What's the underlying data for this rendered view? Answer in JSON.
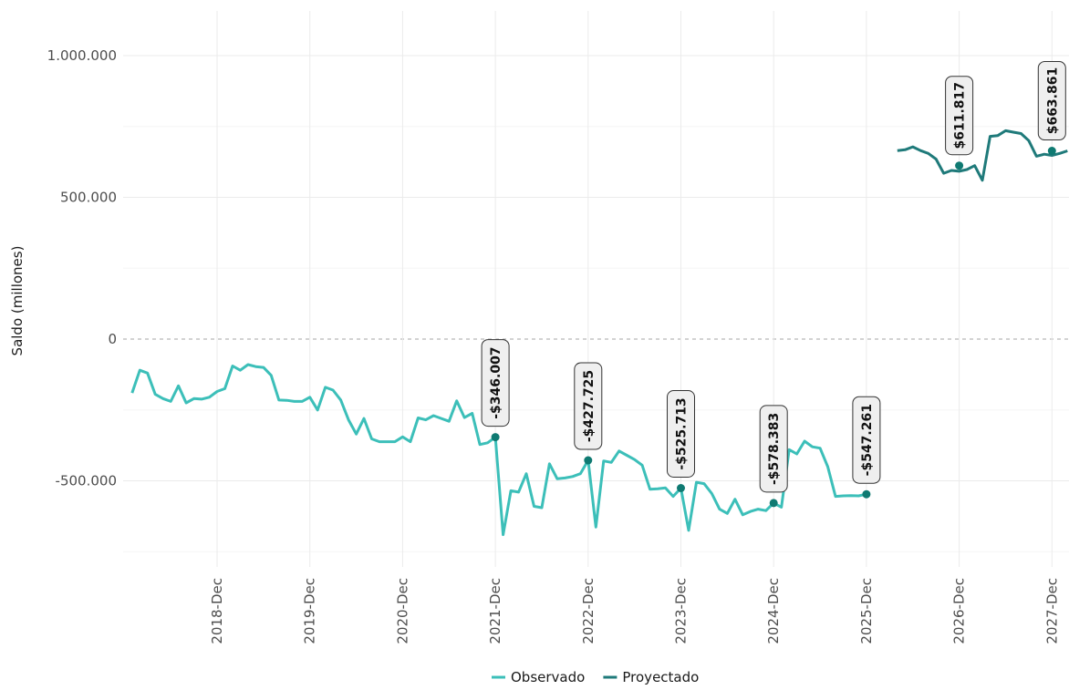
{
  "chart_data": {
    "type": "line",
    "ylabel": "Saldo (millones)",
    "ylim": [
      -820000,
      1160000
    ],
    "yticks": [
      {
        "value": 1000000,
        "label": "1.000.000"
      },
      {
        "value": 500000,
        "label": "500.000"
      },
      {
        "value": 0,
        "label": "0"
      },
      {
        "value": -500000,
        "label": "-500.000"
      }
    ],
    "xticks": [
      {
        "year": 2018,
        "label": "2018-Dec"
      },
      {
        "year": 2019,
        "label": "2019-Dec"
      },
      {
        "year": 2020,
        "label": "2020-Dec"
      },
      {
        "year": 2021,
        "label": "2021-Dec"
      },
      {
        "year": 2022,
        "label": "2022-Dec"
      },
      {
        "year": 2023,
        "label": "2023-Dec"
      },
      {
        "year": 2024,
        "label": "2024-Dec"
      },
      {
        "year": 2025,
        "label": "2025-Dec"
      },
      {
        "year": 2026,
        "label": "2026-Dec"
      },
      {
        "year": 2027,
        "label": "2027-Dec"
      }
    ],
    "legend": {
      "position": "bottom"
    },
    "colors": {
      "Observado": "#3cbfb9",
      "Proyectado": "#1f7a7a",
      "points": "#0f7a72"
    },
    "series": [
      {
        "name": "Observado",
        "start": "2018-01",
        "values": [
          -190000,
          -110000,
          -120000,
          -195000,
          -210000,
          -220000,
          -165000,
          -225000,
          -210000,
          -212000,
          -205000,
          -185000,
          -175000,
          -95000,
          -110000,
          -90000,
          -97000,
          -100000,
          -128000,
          -215000,
          -216000,
          -220000,
          -220000,
          -205000,
          -250000,
          -170000,
          -180000,
          -215000,
          -285000,
          -335000,
          -280000,
          -352000,
          -362000,
          -362000,
          -362000,
          -345000,
          -362000,
          -278000,
          -285000,
          -270000,
          -280000,
          -290000,
          -218000,
          -277000,
          -262000,
          -372000,
          -366000,
          -346007,
          -690000,
          -535000,
          -540000,
          -475000,
          -590000,
          -595000,
          -440000,
          -493000,
          -490000,
          -485000,
          -475000,
          -427725,
          -663000,
          -430000,
          -435000,
          -395000,
          -410000,
          -425000,
          -445000,
          -530000,
          -528000,
          -525000,
          -555000,
          -525713,
          -675000,
          -505000,
          -510000,
          -545000,
          -600000,
          -615000,
          -565000,
          -620000,
          -608000,
          -600000,
          -605000,
          -578383,
          -593000,
          -390000,
          -405000,
          -360000,
          -380000,
          -385000,
          -450000,
          -555000,
          -553000,
          -552000,
          -553000,
          -547261
        ]
      },
      {
        "name": "Proyectado",
        "start": "2026-04",
        "values": [
          665000,
          668000,
          678000,
          665000,
          655000,
          635000,
          585000,
          595000,
          592000,
          598000,
          611817,
          560000,
          715000,
          718000,
          735000,
          730000,
          725000,
          700000,
          645000,
          652000,
          648000,
          655000,
          663861
        ]
      }
    ],
    "annotations": [
      {
        "year": 2021,
        "value": -346007,
        "label": "-$346.007"
      },
      {
        "year": 2022,
        "value": -427725,
        "label": "-$427.725"
      },
      {
        "year": 2023,
        "value": -525713,
        "label": "-$525.713"
      },
      {
        "year": 2024,
        "value": -578383,
        "label": "-$578.383"
      },
      {
        "year": 2025,
        "value": -547261,
        "label": "-$547.261"
      },
      {
        "year": 2026,
        "value": 611817,
        "label": "$611.817"
      },
      {
        "year": 2027,
        "value": 663861,
        "label": "$663.861"
      }
    ]
  }
}
